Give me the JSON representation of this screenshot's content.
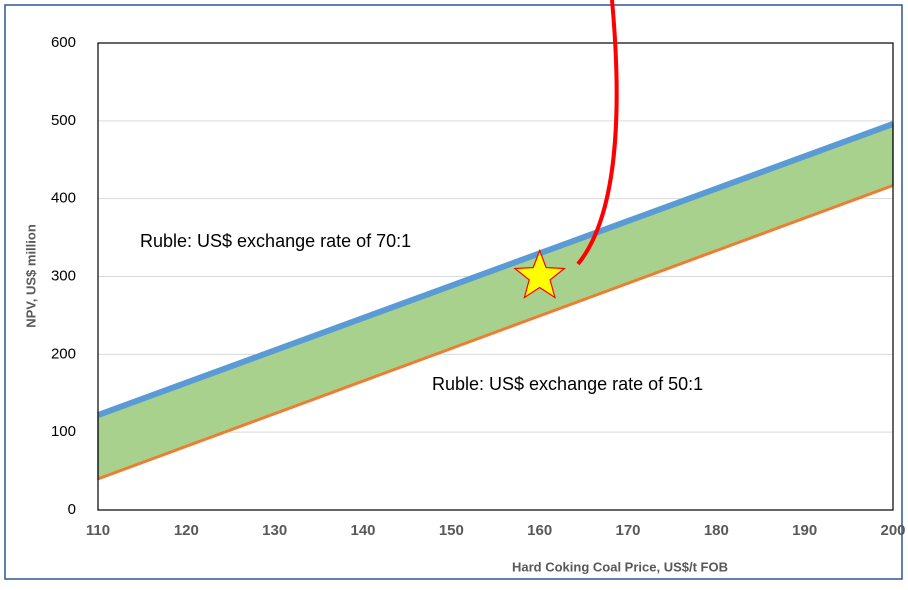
{
  "chart_data": {
    "type": "line",
    "x_label": "Hard Coking Coal Price, US$/t FOB",
    "y_label": "NPV, US$ million",
    "x": [
      110,
      200
    ],
    "series": [
      {
        "name": "Ruble: US$ exchange rate of 70:1",
        "color": "#5b9bd5",
        "values": [
          122,
          496
        ]
      },
      {
        "name": "Ruble: US$ exchange rate of 50:1",
        "color": "#ed7d31",
        "values": [
          40,
          417
        ]
      }
    ],
    "band_color": "#a9d18e",
    "marker": {
      "x": 160,
      "y": 300,
      "color": "#ffff00"
    },
    "xlim": [
      110,
      200
    ],
    "xticks": [
      110,
      120,
      130,
      140,
      150,
      160,
      170,
      180,
      190,
      200
    ],
    "ylim": [
      0,
      600
    ],
    "yticks": [
      0,
      100,
      200,
      300,
      400,
      500,
      600
    ],
    "grid": true
  }
}
